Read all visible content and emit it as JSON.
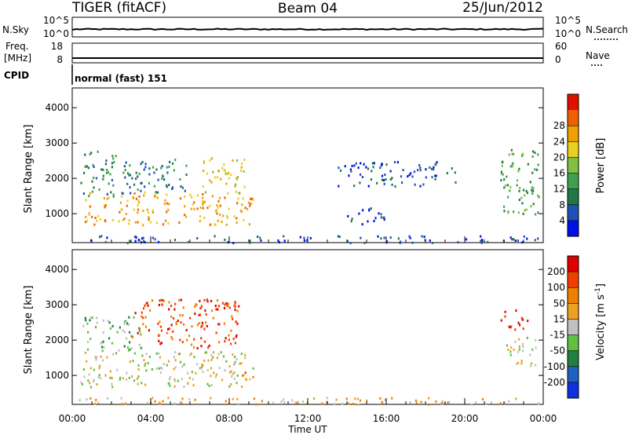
{
  "header": {
    "station": "TIGER (fitACF)",
    "beam": "Beam 04",
    "date": "25/Jun/2012"
  },
  "strips": {
    "nsky_label": "N.Sky",
    "nsky_ticks": [
      "10^5",
      "10^0"
    ],
    "nsearch_label": "N.Search",
    "nsearch_ticks": [
      "10^5",
      "10^0"
    ],
    "freq_label": "Freq.",
    "freq_unit": "[MHz]",
    "freq_ticks": [
      "18",
      "8"
    ],
    "nave_label": "Nave",
    "nave_ticks": [
      "60",
      "0"
    ],
    "cpid_label": "CPID",
    "cpid_value": "normal (fast) 151"
  },
  "chart_data": [
    {
      "type": "heatmap",
      "title": "",
      "quantity": "Power",
      "ylabel": "Slant Range [km]",
      "xlabel": "",
      "ylim": [
        180,
        4560
      ],
      "yticks": [
        1000,
        2000,
        3000,
        4000
      ],
      "xlim_hours": [
        0,
        24
      ],
      "colorbar_label": "Power [dB]",
      "colorbar_ticks": [
        "4",
        "8",
        "12",
        "16",
        "20",
        "24",
        "28"
      ],
      "colors": [
        "#0010e8",
        "#2050b8",
        "#207848",
        "#40a050",
        "#80c040",
        "#e8d020",
        "#f0a000",
        "#f06000",
        "#e01000"
      ],
      "blobs": [
        {
          "t": [
            0.6,
            9.2
          ],
          "r": [
            700,
            1650
          ],
          "level": 6
        },
        {
          "t": [
            0.4,
            2.2
          ],
          "r": [
            1500,
            2800
          ],
          "level": 2
        },
        {
          "t": [
            2.5,
            6.0
          ],
          "r": [
            1600,
            2600
          ],
          "level": 2
        },
        {
          "t": [
            6.5,
            8.8
          ],
          "r": [
            1600,
            2600
          ],
          "level": 5
        },
        {
          "t": [
            14.0,
            16.0
          ],
          "r": [
            700,
            1200
          ],
          "level": 1
        },
        {
          "t": [
            21.8,
            23.8
          ],
          "r": [
            1000,
            2900
          ],
          "level": 3
        },
        {
          "t": [
            13.5,
            19.5
          ],
          "r": [
            1800,
            2500
          ],
          "level": 1
        },
        {
          "t": [
            0.3,
            23.8
          ],
          "r": [
            200,
            400
          ],
          "level": 1
        }
      ]
    },
    {
      "type": "heatmap",
      "title": "",
      "quantity": "Velocity",
      "ylabel": "Slant Range [km]",
      "xlabel": "Time UT",
      "ylim": [
        180,
        4560
      ],
      "yticks": [
        1000,
        2000,
        3000,
        4000
      ],
      "xticks": [
        "00:00",
        "04:00",
        "08:00",
        "12:00",
        "16:00",
        "20:00",
        "00:00"
      ],
      "xlim_hours": [
        0,
        24
      ],
      "colorbar_label": "Velocity [m s",
      "colorbar_label_sup": "-1",
      "colorbar_label_end": "]",
      "colorbar_ticks": [
        "200",
        "100",
        "50",
        "15",
        "-15",
        "-50",
        "-100",
        "-200"
      ],
      "colors": [
        "#1030e0",
        "#2060c0",
        "#208040",
        "#60c040",
        "#c0c0c0",
        "#f0a020",
        "#f08000",
        "#f04000",
        "#e00000"
      ],
      "blobs": [
        {
          "t": [
            0.4,
            9.2
          ],
          "r": [
            700,
            1700
          ],
          "level": 4
        },
        {
          "t": [
            0.5,
            3.5
          ],
          "r": [
            1700,
            2700
          ],
          "level": 3
        },
        {
          "t": [
            3.0,
            8.5
          ],
          "r": [
            1800,
            3200
          ],
          "level": 7
        },
        {
          "t": [
            8.2,
            9.2
          ],
          "r": [
            900,
            1400
          ],
          "level": 6
        },
        {
          "t": [
            22.0,
            23.8
          ],
          "r": [
            1300,
            2100
          ],
          "level": 4
        },
        {
          "t": [
            21.8,
            23.2
          ],
          "r": [
            2300,
            2900
          ],
          "level": 8
        },
        {
          "t": [
            0.3,
            23.8
          ],
          "r": [
            200,
            400
          ],
          "level": 5
        }
      ]
    }
  ]
}
